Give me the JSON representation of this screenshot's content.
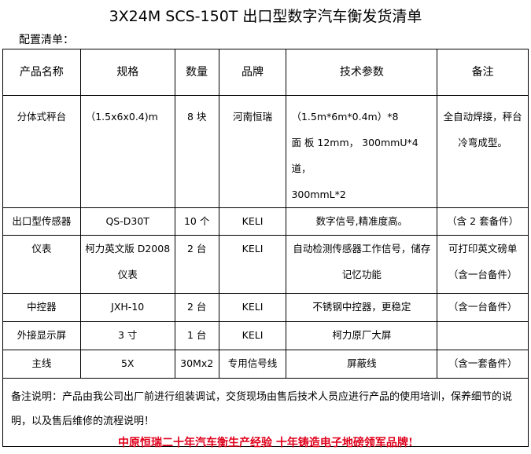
{
  "title": "3X24M SCS-150T 出口型数字汽车衡发货清单",
  "subtitle": "配置清单：",
  "headers": [
    "产品名称",
    "规格",
    "数量",
    "品牌",
    "技术参数",
    "备注"
  ],
  "rows": [
    [
      "分体式秤台",
      "（1.5x6x0.4)m",
      "8 块",
      "河南恒瑞",
      "（1.5m*6m*0.4m）*8\n面 板 12mm， 300mmU*4 道，\n300mmL*2",
      "全自动焊接，秤台冷弯成型。"
    ],
    [
      "出口型传感器",
      "QS-D30T",
      "10 个",
      "KELI",
      "数字信号,精准度高。",
      "（含 2 套备件）"
    ],
    [
      "仪表",
      "柯力英文版 D2008 仪表",
      "2 台",
      "KELI",
      "自动检测传感器工作信号，储存记忆功能",
      "可打印英文磅单（含一台备件）"
    ],
    [
      "中控器",
      "JXH-10",
      "2 台",
      "KELI",
      "不锈钢中控器，更稳定",
      "（含一台备件）"
    ],
    [
      "外接显示屏",
      "3 寸",
      "1 台",
      "KELI",
      "柯力原厂大屏",
      ""
    ],
    [
      "主线",
      "5X",
      "30Mx2",
      "专用信号线",
      "屏蔽线",
      "（含一套备件）"
    ]
  ],
  "notes": "备注说明：产品由我公司出厂前进行组装调试，交货现场由售后技术人员应进行产品的使用培训，保养细节的说明，以及售后维修的流程说明！",
  "footer": "中原恒瑞二十年汽车衡生产经验 十年铸造电子地磅领军品牌!",
  "colors": {
    "footer": "#e0001b"
  }
}
